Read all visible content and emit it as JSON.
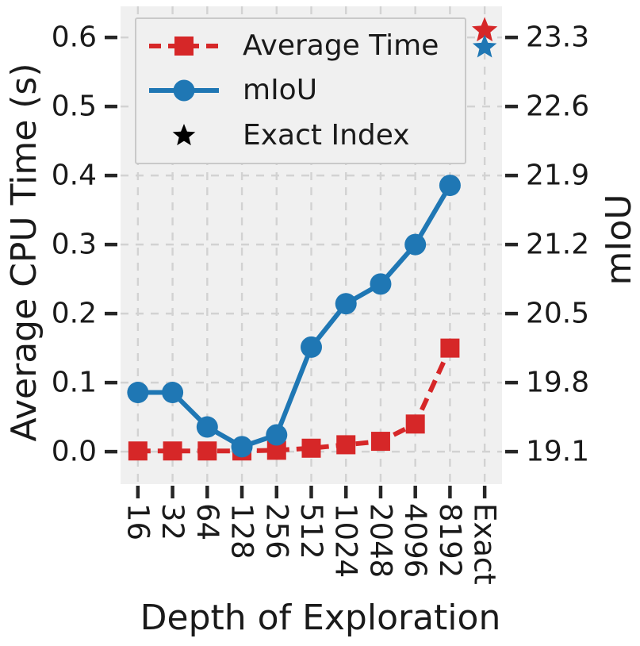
{
  "figure": {
    "background": "#ffffff",
    "plot_background": "#f0f0f0",
    "grid_color": "#d2d2d2",
    "tick_color": "#262626",
    "text_color": "#1a1a1a"
  },
  "chart_data": {
    "type": "line",
    "title": "",
    "xlabel": "Depth of Exploration",
    "ylabel_left": "Average CPU Time (s)",
    "ylabel_right": "mIoU",
    "categories": [
      "16",
      "32",
      "64",
      "128",
      "256",
      "512",
      "1024",
      "2048",
      "4096",
      "8192",
      "Exact"
    ],
    "yticks_left": [
      "0.0",
      "0.1",
      "0.2",
      "0.3",
      "0.4",
      "0.5",
      "0.6"
    ],
    "yticks_right": [
      "19.1",
      "19.8",
      "20.5",
      "21.2",
      "21.9",
      "22.6",
      "23.3"
    ],
    "ylim_left": [
      -0.047,
      0.645
    ],
    "ylim_right": [
      18.771,
      23.615
    ],
    "grid": true,
    "legend_position": "upper left",
    "series": [
      {
        "name": "Average Time",
        "axis": "left",
        "color": "#d62728",
        "marker": "square",
        "line_style": "dashed",
        "values": [
          0.001,
          0.001,
          0.001,
          0.001,
          0.002,
          0.005,
          0.01,
          0.015,
          0.04,
          0.15
        ]
      },
      {
        "name": "mIoU",
        "axis": "right",
        "color": "#1f77b4",
        "marker": "circle",
        "line_style": "solid",
        "values": [
          19.7,
          19.7,
          19.35,
          19.15,
          19.27,
          20.16,
          20.6,
          20.8,
          21.2,
          21.8
        ]
      }
    ],
    "exact_points": [
      {
        "name": "Exact Index - Average Time",
        "axis": "left",
        "category": "Exact",
        "marker": "star",
        "color": "#d62728",
        "value": 0.61
      },
      {
        "name": "Exact Index - mIoU",
        "axis": "right",
        "category": "Exact",
        "marker": "star",
        "color": "#1f77b4",
        "value": 23.2
      }
    ],
    "legend": [
      {
        "label": "Average Time",
        "marker": "square",
        "line_style": "dashed",
        "color": "#d62728"
      },
      {
        "label": "mIoU",
        "marker": "circle",
        "line_style": "solid",
        "color": "#1f77b4"
      },
      {
        "label": "Exact Index",
        "marker": "star",
        "color": "#000000"
      }
    ]
  }
}
